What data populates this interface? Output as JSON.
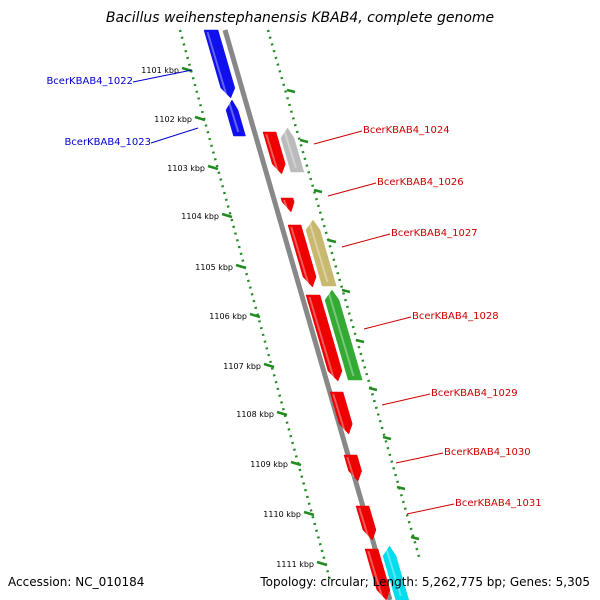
{
  "header": {
    "title": "Bacillus weihenstephanensis KBAB4, complete genome"
  },
  "footer": {
    "accession": "Accession: NC_010184",
    "summary": "Topology: circular; Length: 5,262,775 bp; Genes: 5,305"
  },
  "ruler": {
    "ticks": [
      "1101 kbp",
      "1102 kbp",
      "1103 kbp",
      "1104 kbp",
      "1105 kbp",
      "1106 kbp",
      "1107 kbp",
      "1108 kbp",
      "1109 kbp",
      "1110 kbp",
      "1111 kbp"
    ]
  },
  "colors": {
    "backbone": "#888888",
    "ruler": "#228B22",
    "left_label": "#0000CC",
    "right_label": "#CC0000"
  },
  "genes": [
    {
      "label": "BcerKBAB4_1022",
      "color": "#0000CC"
    },
    {
      "label": "BcerKBAB4_1023",
      "color": "#0000CC"
    },
    {
      "label": "BcerKBAB4_1024",
      "color": "#CC0000"
    },
    {
      "label": "BcerKBAB4_1026",
      "color": "#CC0000"
    },
    {
      "label": "BcerKBAB4_1027",
      "color": "#CC0000"
    },
    {
      "label": "BcerKBAB4_1028",
      "color": "#CC0000"
    },
    {
      "label": "BcerKBAB4_1029",
      "color": "#CC0000"
    },
    {
      "label": "BcerKBAB4_1030",
      "color": "#CC0000"
    },
    {
      "label": "BcerKBAB4_1031",
      "color": "#CC0000"
    }
  ],
  "feature_colors": {
    "blue": "#1010EE",
    "red": "#EE0000",
    "grey": "#BBBBBB",
    "khaki": "#C8B870",
    "green": "#33AA33",
    "cyan": "#00DDEE"
  }
}
